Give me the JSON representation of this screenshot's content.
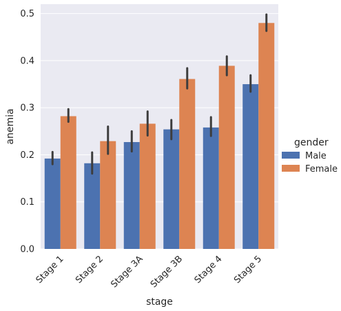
{
  "chart_data": {
    "type": "bar",
    "xlabel": "stage",
    "ylabel": "anemia",
    "categories": [
      "Stage 1",
      "Stage 2",
      "Stage 3A",
      "Stage 3B",
      "Stage 4",
      "Stage 5"
    ],
    "ylim": [
      0,
      0.52
    ],
    "yticks": [
      "0.0",
      "0.1",
      "0.2",
      "0.3",
      "0.4",
      "0.5"
    ],
    "grid": true,
    "legend": {
      "title": "gender",
      "placement": "right"
    },
    "series": [
      {
        "name": "Male",
        "color": "#4c72b0",
        "values": [
          0.192,
          0.182,
          0.227,
          0.254,
          0.258,
          0.35
        ],
        "ci": [
          [
            0.18,
            0.206
          ],
          [
            0.16,
            0.205
          ],
          [
            0.207,
            0.25
          ],
          [
            0.233,
            0.274
          ],
          [
            0.24,
            0.28
          ],
          [
            0.334,
            0.369
          ]
        ]
      },
      {
        "name": "Female",
        "color": "#dd8452",
        "values": [
          0.282,
          0.229,
          0.266,
          0.361,
          0.389,
          0.48
        ],
        "ci": [
          [
            0.27,
            0.297
          ],
          [
            0.202,
            0.26
          ],
          [
            0.241,
            0.292
          ],
          [
            0.341,
            0.384
          ],
          [
            0.369,
            0.409
          ],
          [
            0.463,
            0.498
          ]
        ]
      }
    ]
  }
}
